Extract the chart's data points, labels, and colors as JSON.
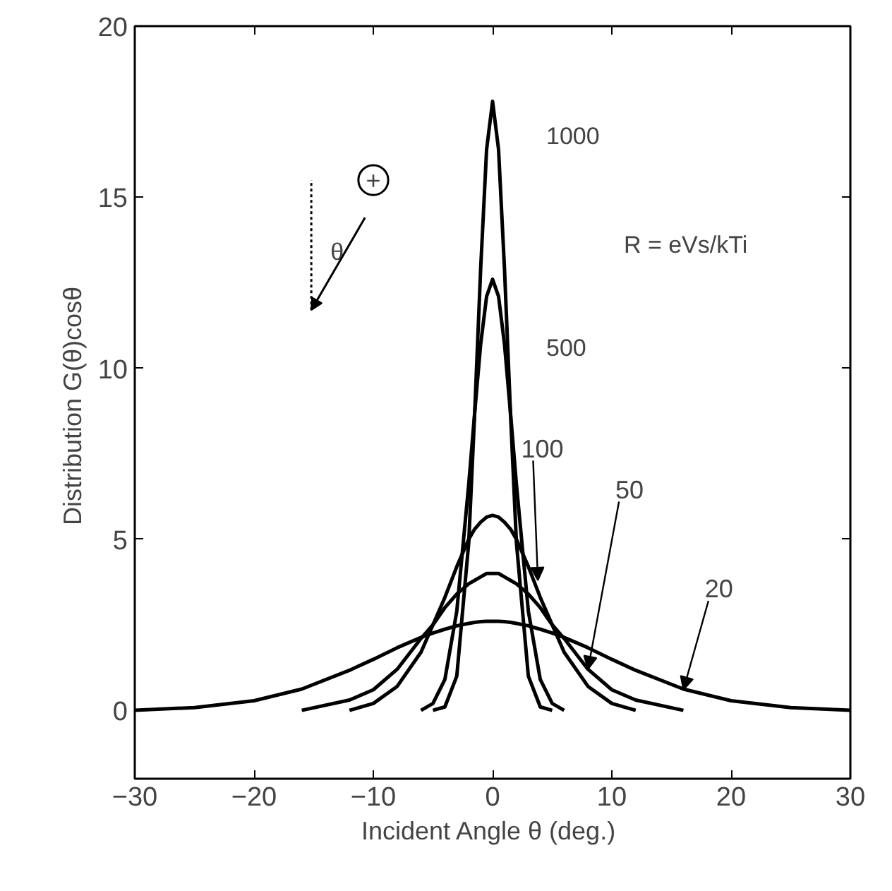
{
  "chart_data": {
    "type": "line",
    "xlabel": "Incident Angle θ  (deg.)",
    "ylabel": "Distribution  G(θ)cosθ",
    "x": [
      -30,
      -25,
      -20,
      -16,
      -12,
      -10,
      -8,
      -6,
      -5,
      -4,
      -3,
      -2,
      -1.5,
      -1,
      -0.5,
      0,
      0.5,
      1,
      1.5,
      2,
      3,
      4,
      5,
      6,
      8,
      10,
      12,
      16,
      20,
      25,
      30
    ],
    "series": [
      {
        "color": "#000000",
        "values": [
          null,
          null,
          null,
          null,
          null,
          null,
          null,
          null,
          0,
          0.1,
          1.0,
          4.9,
          8.7,
          12.9,
          16.4,
          17.8,
          16.4,
          12.9,
          8.7,
          4.9,
          1.0,
          0.1,
          0,
          null,
          null,
          null,
          null,
          null,
          null,
          null,
          null
        ]
      },
      {
        "color": "#000000",
        "values": [
          null,
          null,
          null,
          null,
          null,
          null,
          null,
          0,
          0.2,
          0.9,
          2.9,
          6.6,
          8.7,
          10.7,
          12.1,
          12.6,
          12.1,
          10.7,
          8.7,
          6.6,
          2.9,
          0.9,
          0.2,
          0,
          null,
          null,
          null,
          null,
          null,
          null,
          null
        ]
      },
      {
        "color": "#000000",
        "values": [
          null,
          null,
          null,
          null,
          0,
          0.2,
          0.7,
          1.7,
          2.5,
          3.3,
          4.2,
          5.0,
          5.3,
          5.5,
          5.65,
          5.7,
          5.65,
          5.5,
          5.3,
          5.0,
          4.2,
          3.3,
          2.5,
          1.7,
          0.7,
          0.2,
          0,
          null,
          null,
          null,
          null
        ]
      },
      {
        "color": "#000000",
        "values": [
          null,
          null,
          null,
          0,
          0.3,
          0.6,
          1.2,
          2.1,
          2.5,
          3.0,
          3.4,
          3.7,
          3.8,
          3.9,
          4.0,
          4.0,
          4.0,
          3.9,
          3.8,
          3.7,
          3.4,
          3.0,
          2.5,
          2.1,
          1.2,
          0.6,
          0.3,
          0,
          null,
          null,
          null
        ]
      },
      {
        "color": "#000000",
        "values": [
          0,
          0.08,
          0.28,
          0.62,
          1.17,
          1.49,
          1.83,
          2.13,
          2.26,
          2.37,
          2.47,
          2.54,
          2.57,
          2.59,
          2.6,
          2.6,
          2.6,
          2.59,
          2.57,
          2.54,
          2.47,
          2.37,
          2.26,
          2.13,
          1.83,
          1.49,
          1.17,
          0.62,
          0.28,
          0.08,
          0
        ]
      }
    ],
    "annotations": [
      "1000",
      "500",
      {
        "text": "100",
        "x": 3.8,
        "y": 3.8
      },
      {
        "text": "50",
        "x": 8,
        "y": 1.2
      },
      {
        "text": "20",
        "x": 16,
        "y": 0.6
      },
      "R = eVs/kTi",
      "θ",
      "+"
    ],
    "xlim": [
      -30,
      30
    ],
    "ylim": [
      -2,
      20
    ],
    "xticks": [
      -30,
      -20,
      -10,
      0,
      10,
      20,
      30
    ],
    "yticks": [
      0,
      5,
      10,
      15,
      20
    ],
    "grid": false,
    "marker": "none",
    "line_style": "solid"
  }
}
